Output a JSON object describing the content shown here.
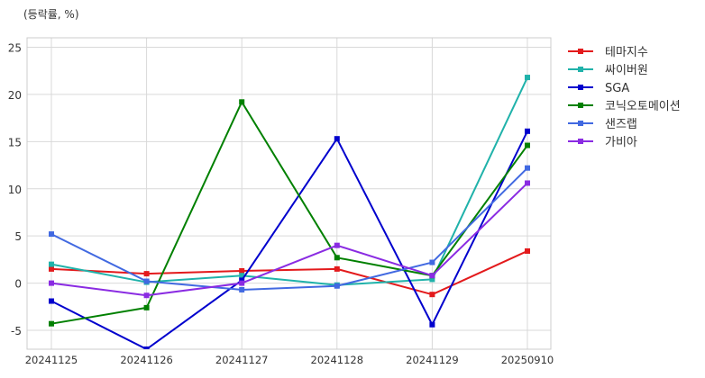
{
  "chart_data": {
    "type": "line",
    "ylabel": "(등락률, %)",
    "categories": [
      "20241125",
      "20241126",
      "20241127",
      "20241128",
      "20241129",
      "20250910"
    ],
    "ylim": [
      -7.0,
      26.0
    ],
    "yticks": [
      -5,
      0,
      5,
      10,
      15,
      20,
      25
    ],
    "grid": true,
    "legend_position": "right",
    "series": [
      {
        "name": "테마지수",
        "color": "#e31a1c",
        "values": [
          1.5,
          1.0,
          1.3,
          1.5,
          -1.2,
          3.4
        ]
      },
      {
        "name": "싸이버원",
        "color": "#20b2aa",
        "values": [
          2.0,
          0.1,
          0.8,
          -0.2,
          0.4,
          21.8
        ]
      },
      {
        "name": "SGA",
        "color": "#0000cd",
        "values": [
          -1.9,
          -7.0,
          0.3,
          15.3,
          -4.4,
          16.1
        ]
      },
      {
        "name": "코닉오토메이션",
        "color": "#008000",
        "values": [
          -4.3,
          -2.6,
          19.2,
          2.7,
          0.8,
          14.6
        ]
      },
      {
        "name": "샌즈랩",
        "color": "#4169e1",
        "values": [
          5.2,
          0.2,
          -0.7,
          -0.3,
          2.2,
          12.2
        ]
      },
      {
        "name": "가비아",
        "color": "#8a2be2",
        "values": [
          0.0,
          -1.3,
          0.0,
          4.0,
          0.8,
          10.6
        ]
      }
    ]
  }
}
